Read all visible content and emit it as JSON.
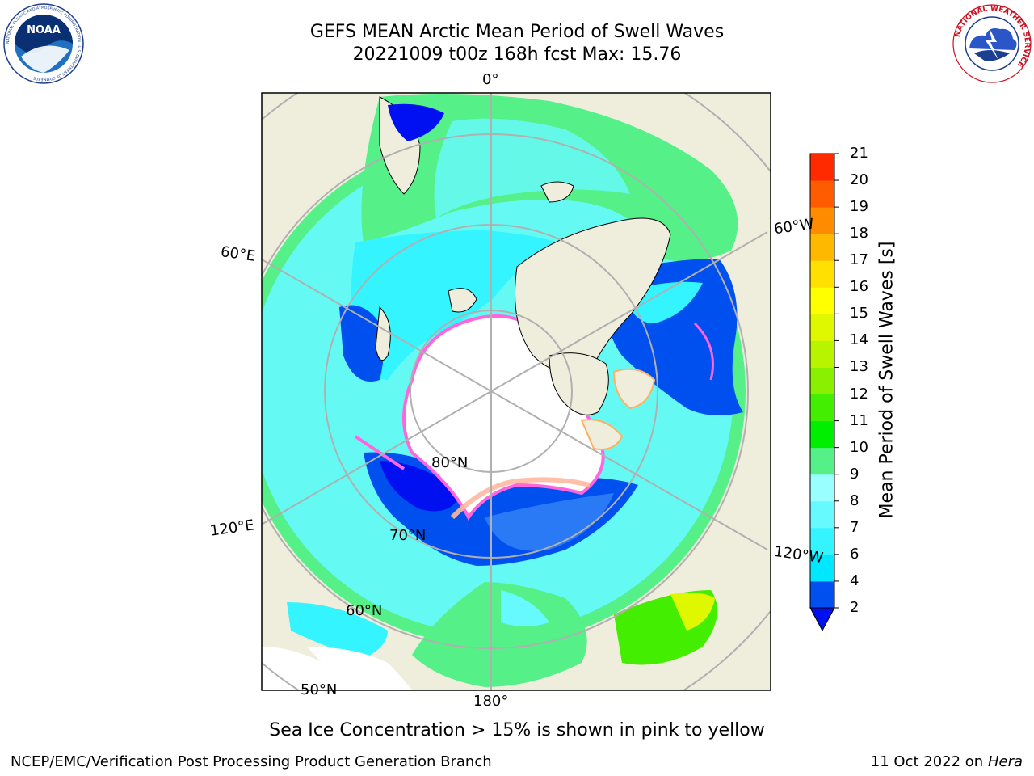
{
  "title": {
    "line1": "GEFS MEAN Arctic Mean Period of Swell Waves",
    "line2": "20221009 t00z 168h fcst   Max: 15.76"
  },
  "map": {
    "projection": "north polar stereographic",
    "graticule_labels": {
      "lon_0": "0°",
      "lon_60e": "60°E",
      "lon_60w": "60°W",
      "lon_120e": "120°E",
      "lon_120w": "120°W",
      "lon_180": "180°",
      "lat_80": "80°N",
      "lat_70": "70°N",
      "lat_60": "60°N",
      "lat_50": "50°N"
    },
    "colors": {
      "land": "#efeddc",
      "pole_hole": "#ffffff",
      "ice_edge": "#ff66dd",
      "grid": "#b0b0b0"
    }
  },
  "colorbar": {
    "label": "Mean Period of Swell Waves [s]",
    "ticks": [
      "2",
      "4",
      "6",
      "7",
      "8",
      "9",
      "10",
      "11",
      "12",
      "13",
      "14",
      "15",
      "16",
      "17",
      "18",
      "19",
      "20",
      "21"
    ],
    "colors": [
      "#0050f0",
      "#00e8ff",
      "#33f4ff",
      "#66faff",
      "#99ffff",
      "#55f088",
      "#00ee00",
      "#44ee00",
      "#88f000",
      "#b8f400",
      "#dff800",
      "#ffff00",
      "#ffe000",
      "#ffb800",
      "#ff8c00",
      "#ff5c00",
      "#ff2a00",
      "#ff0000"
    ],
    "extend_color": "#0010f0"
  },
  "note": "Sea Ice Concentration > 15% is shown in pink to yellow",
  "footer": {
    "left": "NCEP/EMC/Verification Post Processing Product Generation Branch",
    "right_prefix": "11 Oct 2022 on ",
    "right_italic": "Hera"
  },
  "logos": {
    "noaa": "NOAA",
    "noaa_ring": "NATIONAL OCEANIC AND ATMOSPHERIC ADMINISTRATION · U.S. DEPARTMENT OF COMMERCE",
    "nws_ring": "NATIONAL WEATHER SERVICE"
  }
}
